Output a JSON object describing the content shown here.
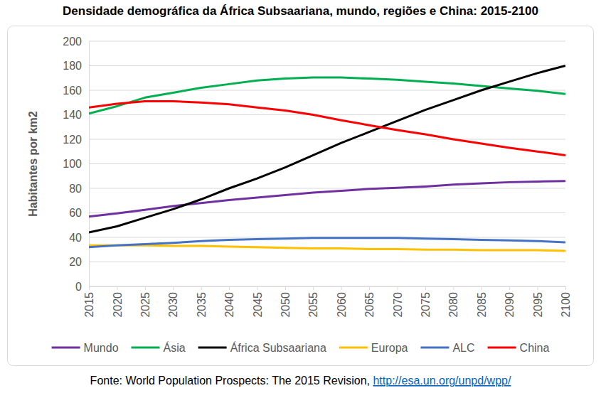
{
  "chart_data": {
    "type": "line",
    "title": "Densidade demográfica da África Subsaariana, mundo, regiões e China: 2015-2100",
    "y_label": "Habitantes por km2",
    "source": "Fonte: World Population Prospects: The 2015 Revision,",
    "source_link": "http://esa.un.org/unpd/wpp/",
    "x": [
      2015,
      2020,
      2025,
      2030,
      2035,
      2040,
      2045,
      2050,
      2055,
      2060,
      2065,
      2070,
      2075,
      2080,
      2085,
      2090,
      2095,
      2100
    ],
    "xlim": [
      2015,
      2100
    ],
    "xticks": [
      2015,
      2020,
      2025,
      2030,
      2035,
      2040,
      2045,
      2050,
      2055,
      2060,
      2065,
      2070,
      2075,
      2080,
      2085,
      2090,
      2095,
      2100
    ],
    "ylim": [
      0,
      200
    ],
    "yticks": [
      0,
      20,
      40,
      60,
      80,
      100,
      120,
      140,
      160,
      180,
      200
    ],
    "grid": true,
    "legend": "bottom",
    "series": [
      {
        "name": "Mundo",
        "color": "#7030a0",
        "values": [
          57,
          59.5,
          62.5,
          65.5,
          68,
          70.5,
          72.5,
          74.5,
          76.5,
          78,
          79.5,
          80.5,
          81.5,
          83,
          84,
          85,
          85.5,
          86
        ]
      },
      {
        "name": "Ásia",
        "color": "#00b050",
        "values": [
          141,
          147,
          154,
          158,
          162,
          165,
          168,
          169.5,
          170.5,
          170.5,
          169.5,
          168.5,
          167,
          165.5,
          163.5,
          161.5,
          159.5,
          157
        ]
      },
      {
        "name": "África Subsaariana",
        "color": "#000000",
        "values": [
          44,
          49,
          56,
          63,
          71,
          80,
          88,
          97,
          107,
          117,
          126,
          135,
          144,
          152,
          160,
          167,
          174,
          180
        ]
      },
      {
        "name": "Europa",
        "color": "#ffc000",
        "values": [
          33.5,
          33.5,
          33.5,
          33,
          33,
          32.5,
          32,
          31.5,
          31,
          31,
          30.5,
          30.5,
          30,
          30,
          29.5,
          29.5,
          29.5,
          29
        ]
      },
      {
        "name": "ALC",
        "color": "#4472c4",
        "values": [
          32,
          33.5,
          34.5,
          35.5,
          37,
          38,
          38.5,
          39,
          39.5,
          39.5,
          39.5,
          39.5,
          39,
          38.5,
          38,
          37.5,
          37,
          36
        ]
      },
      {
        "name": "China",
        "color": "#ff0000",
        "values": [
          146,
          149,
          151,
          151,
          150,
          148.5,
          146,
          143.5,
          140,
          135.5,
          131.5,
          127.5,
          124,
          120,
          116.5,
          113,
          110,
          107
        ]
      }
    ]
  }
}
